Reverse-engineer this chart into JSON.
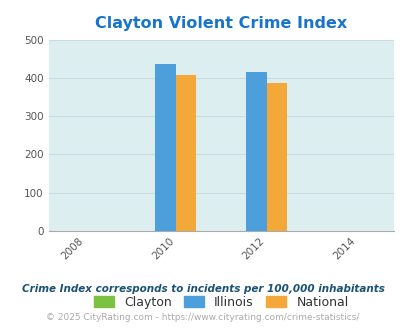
{
  "title": "Clayton Violent Crime Index",
  "title_color": "#1874cd",
  "years": [
    2008,
    2010,
    2012,
    2014
  ],
  "data_years": [
    2010,
    2012
  ],
  "clayton": [
    0,
    0
  ],
  "illinois": [
    435,
    415
  ],
  "national": [
    407,
    386
  ],
  "ylim": [
    0,
    500
  ],
  "yticks": [
    0,
    100,
    200,
    300,
    400,
    500
  ],
  "bar_width": 0.45,
  "bar_gap": 0.45,
  "colors": {
    "clayton": "#7dc142",
    "illinois": "#4d9fdb",
    "national": "#f5a83a"
  },
  "bg_color": "#ddeef0",
  "grid_color": "#c5dde0",
  "legend_labels": [
    "Clayton",
    "Illinois",
    "National"
  ],
  "footnote1": "Crime Index corresponds to incidents per 100,000 inhabitants",
  "footnote2": "© 2025 CityRating.com - https://www.cityrating.com/crime-statistics/",
  "footnote1_color": "#1a5276",
  "footnote2_color": "#aaaaaa",
  "xlim": [
    2007.2,
    2014.8
  ]
}
